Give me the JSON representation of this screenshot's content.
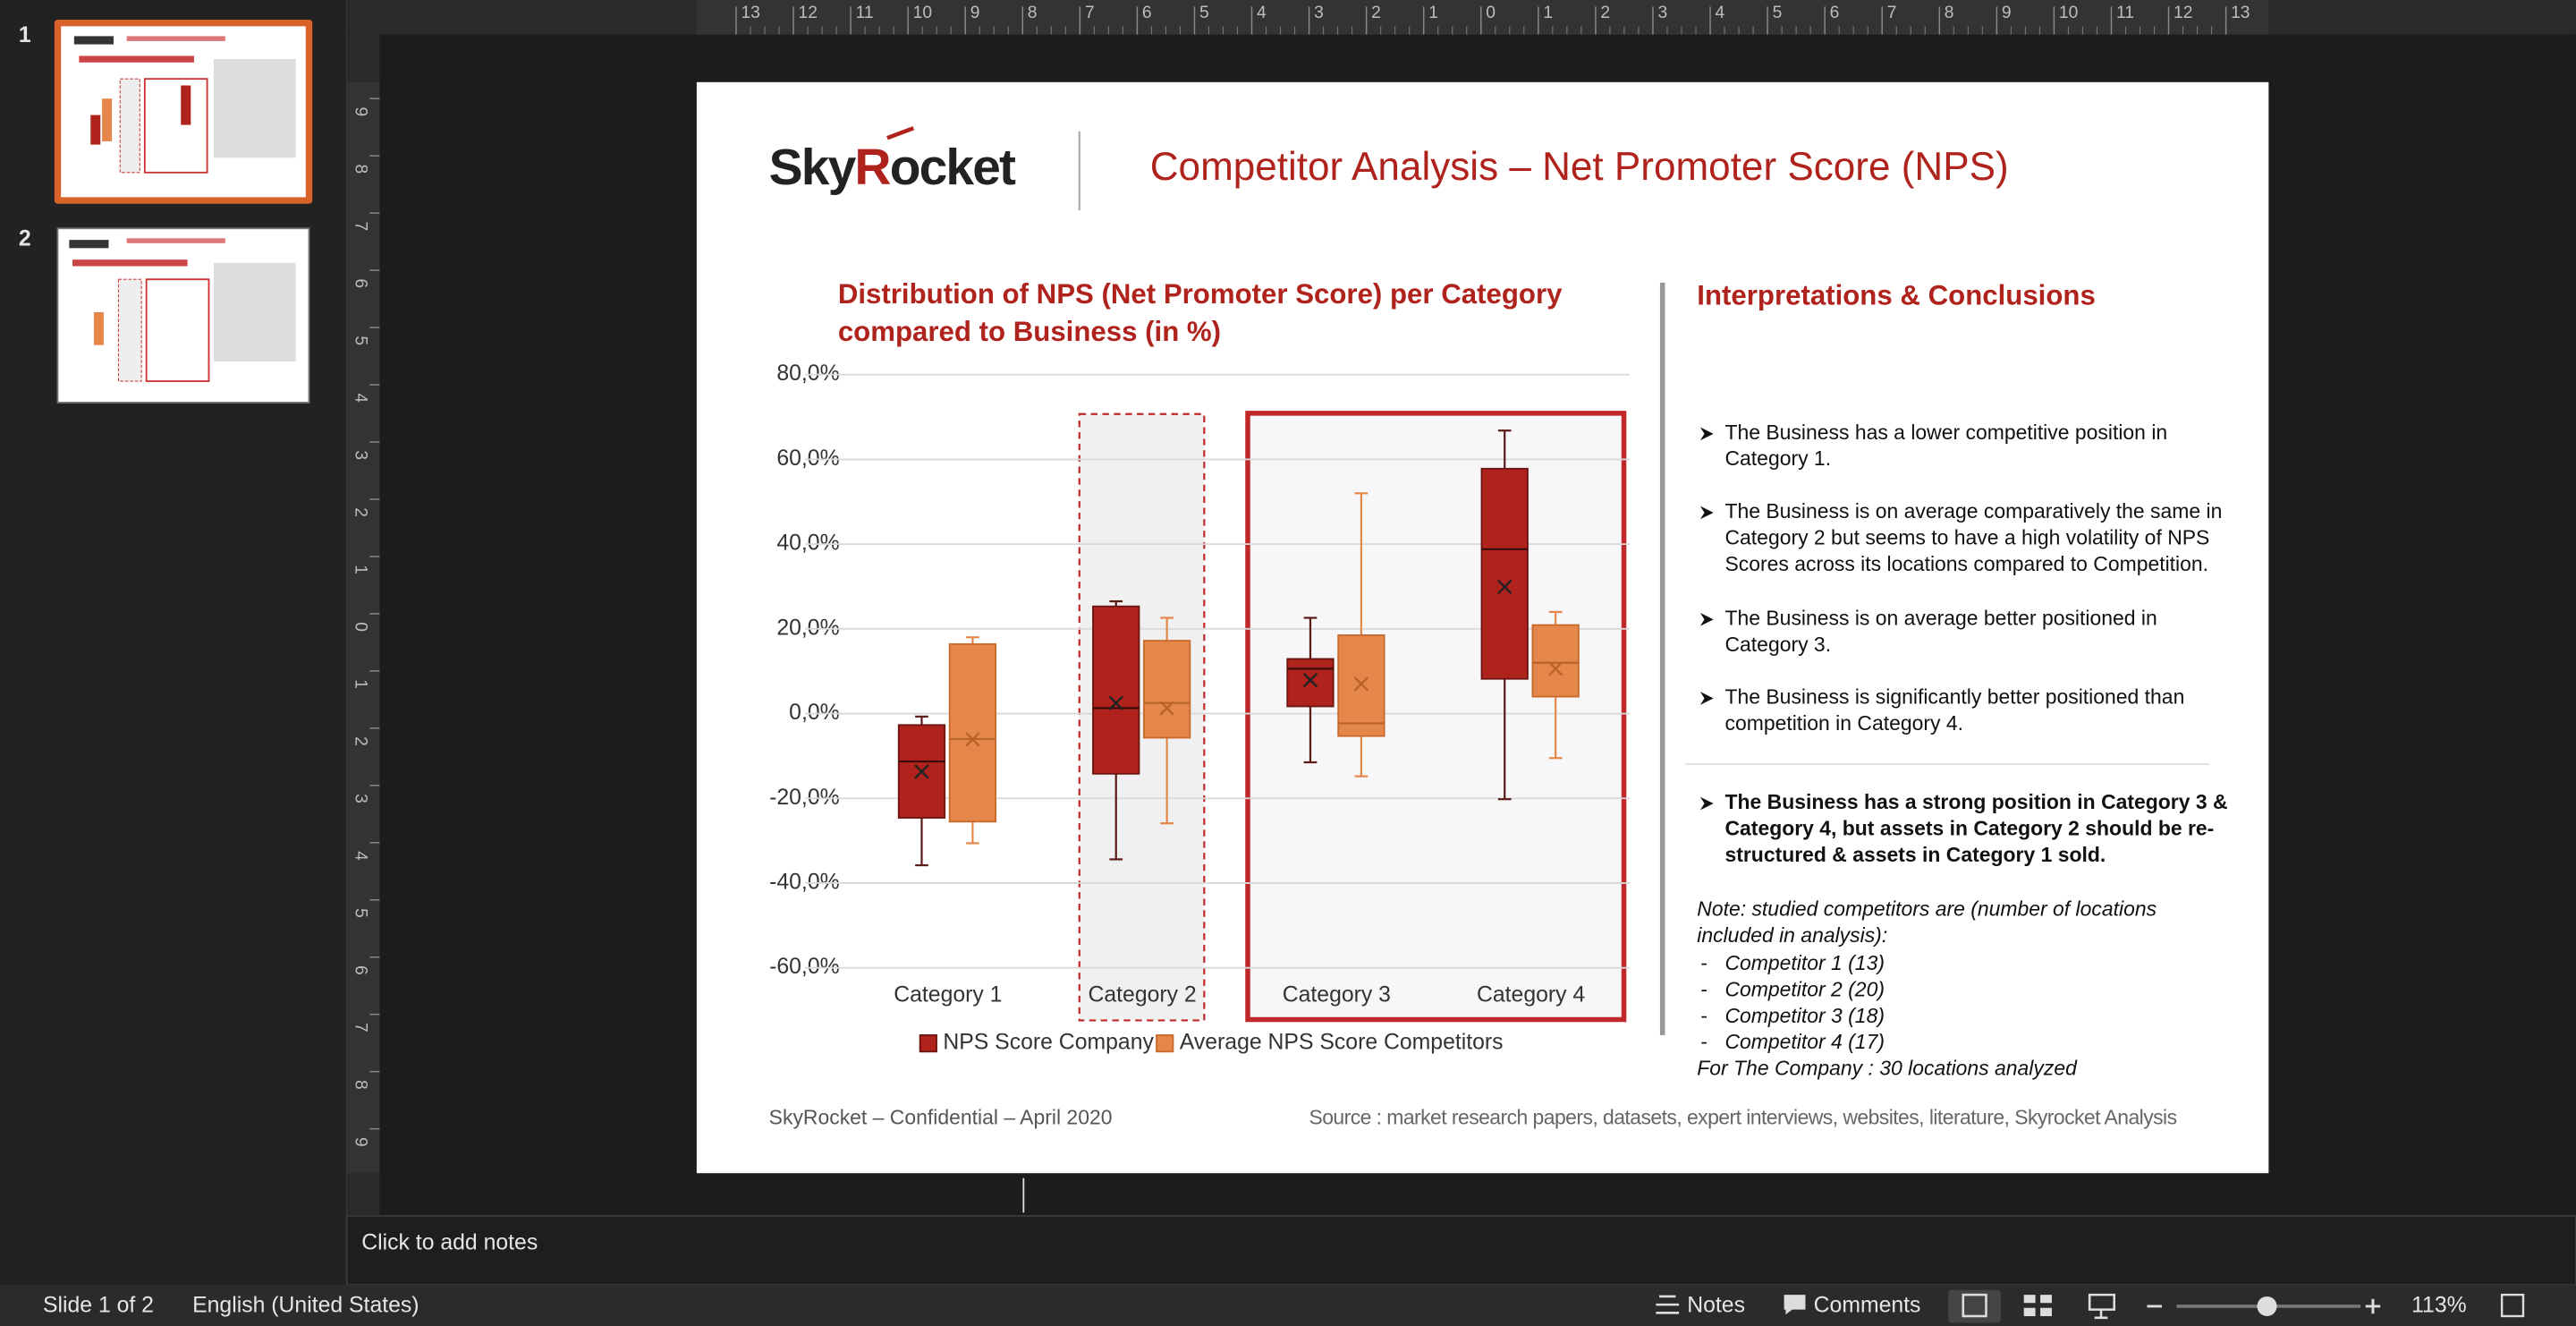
{
  "sidebar": {
    "slide_numbers": [
      "1",
      "2"
    ]
  },
  "ruler": {
    "top": [
      13,
      12,
      11,
      10,
      9,
      8,
      7,
      6,
      5,
      4,
      3,
      2,
      1,
      0,
      1,
      2,
      3,
      4,
      5,
      6,
      7,
      8,
      9,
      10,
      11,
      12,
      13
    ],
    "left": [
      9,
      8,
      7,
      6,
      5,
      4,
      3,
      2,
      1,
      0,
      1,
      2,
      3,
      4,
      5,
      6,
      7,
      8,
      9
    ]
  },
  "slide": {
    "logo": [
      "Sky",
      "R",
      "ocket"
    ],
    "title": "Competitor Analysis – Net Promoter Score (NPS)",
    "panel": {
      "heading": "Interpretations & Conclusions",
      "bullets": [
        [
          "The Business has a lower competitive position in",
          "Category 1."
        ],
        [
          "The Business is on average comparatively the same in",
          "Category 2 but seems to have a high volatility of NPS",
          "Scores across its locations compared to Competition."
        ],
        [
          "The Business is on average better positioned in",
          "Category 3."
        ],
        [
          "The Business is significantly better positioned than",
          "competition in Category 4."
        ]
      ],
      "conclusion": [
        "The Business has a strong position in Category 3 &",
        "Category 4, but assets in Category 2 should be re-",
        "structured & assets in Category 1 sold."
      ],
      "note": [
        "Note: studied competitors are (number of locations",
        "included in analysis):"
      ],
      "note_marker": "-",
      "note_items": [
        "Competitor 1 (13)",
        "Competitor 2 (20)",
        "Competitor 3 (18)",
        "Competitor 4 (17)"
      ],
      "note_footer": "For The Company : 30 locations analyzed"
    },
    "footer": "SkyRocket – Confidential – April 2020",
    "source": "Source : market research papers, datasets, expert interviews, websites, literature, Skyrocket Analysis"
  },
  "chart_data": {
    "type": "box",
    "title": [
      "Distribution of NPS (Net Promoter Score) per Category",
      "compared to Business (in %)"
    ],
    "categories": [
      "Category 1",
      "Category 2",
      "Category 3",
      "Category 4"
    ],
    "ylim": [
      -60,
      80
    ],
    "yticks": [
      {
        "value": -60,
        "label": "-60,0%"
      },
      {
        "value": -40,
        "label": "-40,0%"
      },
      {
        "value": -20,
        "label": "-20,0%"
      },
      {
        "value": 0,
        "label": "0,0%"
      },
      {
        "value": 20,
        "label": "20,0%"
      },
      {
        "value": 40,
        "label": "40,0%"
      },
      {
        "value": 60,
        "label": "60,0%"
      },
      {
        "value": 80,
        "label": "80,0%"
      }
    ],
    "grid": true,
    "legend": "bottom",
    "series": [
      {
        "name": "NPS Score Company",
        "color": "#b0231d",
        "min": [
          -35.8,
          -34.4,
          -11.5,
          -20.2
        ],
        "q1": [
          -24.6,
          -14.2,
          1.7,
          8.2
        ],
        "median": [
          -11.3,
          1.3,
          10.6,
          38.8
        ],
        "q3": [
          -2.7,
          25.3,
          12.9,
          57.8
        ],
        "max": [
          -0.7,
          26.5,
          22.6,
          66.8
        ],
        "mean": [
          -13.7,
          2.5,
          7.9,
          29.9
        ]
      },
      {
        "name": "Average NPS Score Competitors",
        "color": "#e5874a",
        "min": [
          -30.6,
          -25.9,
          -14.8,
          -10.5
        ],
        "q1": [
          -25.5,
          -5.7,
          -5.3,
          4
        ],
        "median": [
          -6,
          2.5,
          -2.3,
          12
        ],
        "q3": [
          16.4,
          17.2,
          18.5,
          20.9
        ],
        "max": [
          18,
          22.6,
          52,
          24
        ],
        "mean": [
          -6.1,
          1.3,
          7,
          10.6
        ]
      }
    ]
  },
  "notes": {
    "placeholder": "Click to add notes"
  },
  "status": {
    "slide": "Slide 1 of 2",
    "language": "English (United States)",
    "notes": "Notes",
    "comments": "Comments",
    "zoom": "113%"
  }
}
